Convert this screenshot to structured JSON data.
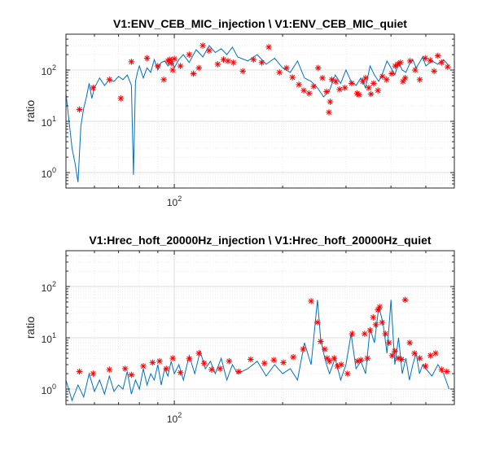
{
  "chart_data": [
    {
      "type": "line",
      "title": "V1:ENV_CEB_MIC_injection \\ V1:ENV_CEB_MIC_quiet",
      "xlabel": "",
      "ylabel": "ratio",
      "xscale": "log",
      "yscale": "log",
      "xlim": [
        50,
        600
      ],
      "ylim": [
        0.5,
        500
      ],
      "x_ticks": [
        {
          "value": 100,
          "base": "10",
          "exp": "2"
        }
      ],
      "y_ticks": [
        {
          "value": 1,
          "base": "10",
          "exp": "0"
        },
        {
          "value": 10,
          "base": "10",
          "exp": "1"
        },
        {
          "value": 100,
          "base": "10",
          "exp": "2"
        }
      ],
      "grid": true,
      "line_color": "#0072BD",
      "marker_color": "#FF0000",
      "line": {
        "x": [
          50,
          51,
          52,
          53,
          54,
          55,
          56,
          57,
          58,
          59,
          60,
          62,
          64,
          66,
          68,
          70,
          72,
          74,
          76,
          77,
          78,
          79,
          80,
          82,
          84,
          86,
          88,
          90,
          92,
          94,
          96,
          98,
          100,
          103,
          106,
          110,
          115,
          120,
          125,
          130,
          135,
          140,
          145,
          150,
          160,
          170,
          180,
          190,
          200,
          210,
          220,
          230,
          240,
          250,
          260,
          270,
          280,
          290,
          300,
          310,
          320,
          330,
          340,
          350,
          360,
          370,
          380,
          390,
          400,
          410,
          420,
          430,
          440,
          450,
          460,
          470,
          480,
          490,
          500,
          520,
          540,
          560,
          580
        ],
        "y": [
          35,
          10,
          3,
          1.5,
          0.65,
          8,
          18,
          30,
          55,
          28,
          45,
          70,
          50,
          65,
          60,
          75,
          65,
          80,
          50,
          0.9,
          60,
          90,
          120,
          70,
          110,
          90,
          160,
          100,
          140,
          150,
          120,
          170,
          110,
          160,
          200,
          140,
          250,
          180,
          300,
          220,
          260,
          200,
          280,
          180,
          150,
          200,
          130,
          170,
          110,
          90,
          150,
          70,
          60,
          45,
          30,
          40,
          80,
          55,
          100,
          60,
          50,
          70,
          45,
          120,
          80,
          60,
          90,
          150,
          110,
          80,
          140,
          100,
          90,
          130,
          160,
          110,
          140,
          180,
          120,
          150,
          130,
          160,
          120
        ]
      },
      "markers": {
        "x": [
          54.5,
          59.5,
          66,
          71,
          76,
          84,
          90,
          93.5,
          96,
          97,
          98,
          99,
          100,
          104,
          110,
          113,
          117,
          120,
          125,
          132,
          137,
          141,
          146,
          155,
          166,
          175,
          183,
          196,
          205,
          213,
          222,
          229,
          237,
          244,
          251,
          258,
          265,
          269,
          271,
          274,
          281,
          288,
          298,
          311,
          322,
          326,
          334,
          340,
          347,
          352,
          358,
          368,
          379,
          389,
          402,
          411,
          418,
          425,
          432,
          438,
          452,
          467,
          481,
          498,
          514,
          527,
          540,
          553,
          575
        ],
        "y": [
          17,
          45,
          65,
          28,
          145,
          170,
          120,
          65,
          150,
          160,
          135,
          100,
          165,
          120,
          200,
          85,
          110,
          300,
          240,
          130,
          160,
          150,
          140,
          95,
          160,
          140,
          280,
          90,
          110,
          72,
          52,
          40,
          35,
          48,
          110,
          70,
          38,
          15,
          24,
          65,
          60,
          42,
          45,
          55,
          35,
          33,
          60,
          70,
          45,
          34,
          55,
          40,
          75,
          65,
          85,
          120,
          130,
          140,
          60,
          70,
          150,
          100,
          65,
          170,
          155,
          95,
          190,
          140,
          115
        ]
      }
    },
    {
      "type": "line",
      "title": "V1:Hrec_hoft_20000Hz_injection \\ V1:Hrec_hoft_20000Hz_quiet",
      "xlabel": "",
      "ylabel": "ratio",
      "xscale": "log",
      "yscale": "log",
      "xlim": [
        50,
        600
      ],
      "ylim": [
        0.5,
        500
      ],
      "x_ticks": [
        {
          "value": 100,
          "base": "10",
          "exp": "2"
        }
      ],
      "y_ticks": [
        {
          "value": 1,
          "base": "10",
          "exp": "0"
        },
        {
          "value": 10,
          "base": "10",
          "exp": "1"
        },
        {
          "value": 100,
          "base": "10",
          "exp": "2"
        }
      ],
      "grid": true,
      "line_color": "#0072BD",
      "marker_color": "#FF0000",
      "line": {
        "x": [
          50,
          52,
          54,
          56,
          58,
          60,
          62,
          64,
          66,
          68,
          70,
          72,
          74,
          76,
          78,
          80,
          82,
          84,
          86,
          88,
          90,
          92,
          94,
          96,
          98,
          100,
          103,
          106,
          110,
          114,
          118,
          122,
          126,
          130,
          135,
          140,
          145,
          150,
          160,
          170,
          180,
          190,
          200,
          210,
          220,
          230,
          240,
          250,
          255,
          260,
          265,
          270,
          280,
          290,
          300,
          310,
          320,
          330,
          340,
          350,
          360,
          370,
          380,
          390,
          400,
          410,
          420,
          430,
          440,
          450,
          460,
          470,
          480,
          490,
          500,
          520,
          540,
          560,
          580
        ],
        "y": [
          1.5,
          0.6,
          1.2,
          0.7,
          2.0,
          0.9,
          1.5,
          0.8,
          1.8,
          0.9,
          1.2,
          1.0,
          2.2,
          0.8,
          1.5,
          1.0,
          2.5,
          1.2,
          2.0,
          1.5,
          3.0,
          1.2,
          2.5,
          1.8,
          3.5,
          2.0,
          3.0,
          1.5,
          4.5,
          2.0,
          5.5,
          2.5,
          3.5,
          2.0,
          4.0,
          1.5,
          3.0,
          2.0,
          2.5,
          3.5,
          1.8,
          3.0,
          2.0,
          2.5,
          1.5,
          8.0,
          3.0,
          55,
          10,
          5.0,
          3.0,
          2.0,
          4.0,
          1.5,
          3.0,
          12,
          2.5,
          3.5,
          2.0,
          15,
          8.0,
          40,
          20,
          5.0,
          55,
          3.0,
          10,
          2.0,
          4.0,
          1.5,
          3.0,
          5.0,
          2.0,
          3.0,
          2.5,
          1.8,
          3.0,
          2.0,
          1.0
        ]
      },
      "markers": {
        "x": [
          54.5,
          59.5,
          66,
          73,
          76,
          82,
          87,
          91,
          95,
          99,
          104,
          110,
          117,
          121,
          127,
          134,
          142,
          151,
          163,
          178,
          189,
          201,
          214,
          228,
          240,
          250,
          255,
          262,
          266,
          270,
          278,
          284,
          291,
          303,
          312,
          323,
          330,
          338,
          344,
          350,
          357,
          363,
          368,
          372,
          378,
          386,
          395,
          403,
          410,
          419,
          428,
          438,
          451,
          465,
          481,
          499,
          515,
          532,
          553,
          572
        ],
        "y": [
          2.2,
          2.0,
          2.4,
          2.5,
          1.9,
          2.8,
          3.3,
          3.5,
          2.5,
          4.0,
          2.1,
          3.9,
          5.0,
          3.2,
          2.4,
          2.5,
          3.5,
          2.2,
          3.8,
          3.2,
          3.7,
          3.3,
          4.2,
          6.0,
          52,
          20,
          8.5,
          6.0,
          4.0,
          3.5,
          4.0,
          2.8,
          3.0,
          2.0,
          12,
          3.5,
          3.7,
          12,
          4.0,
          14,
          25,
          18,
          35,
          40,
          20,
          12,
          8.0,
          4.5,
          5.5,
          4.0,
          3.8,
          55,
          8.0,
          5.0,
          4.0,
          2.8,
          4.5,
          5.0,
          2.4,
          2.2
        ]
      }
    }
  ]
}
